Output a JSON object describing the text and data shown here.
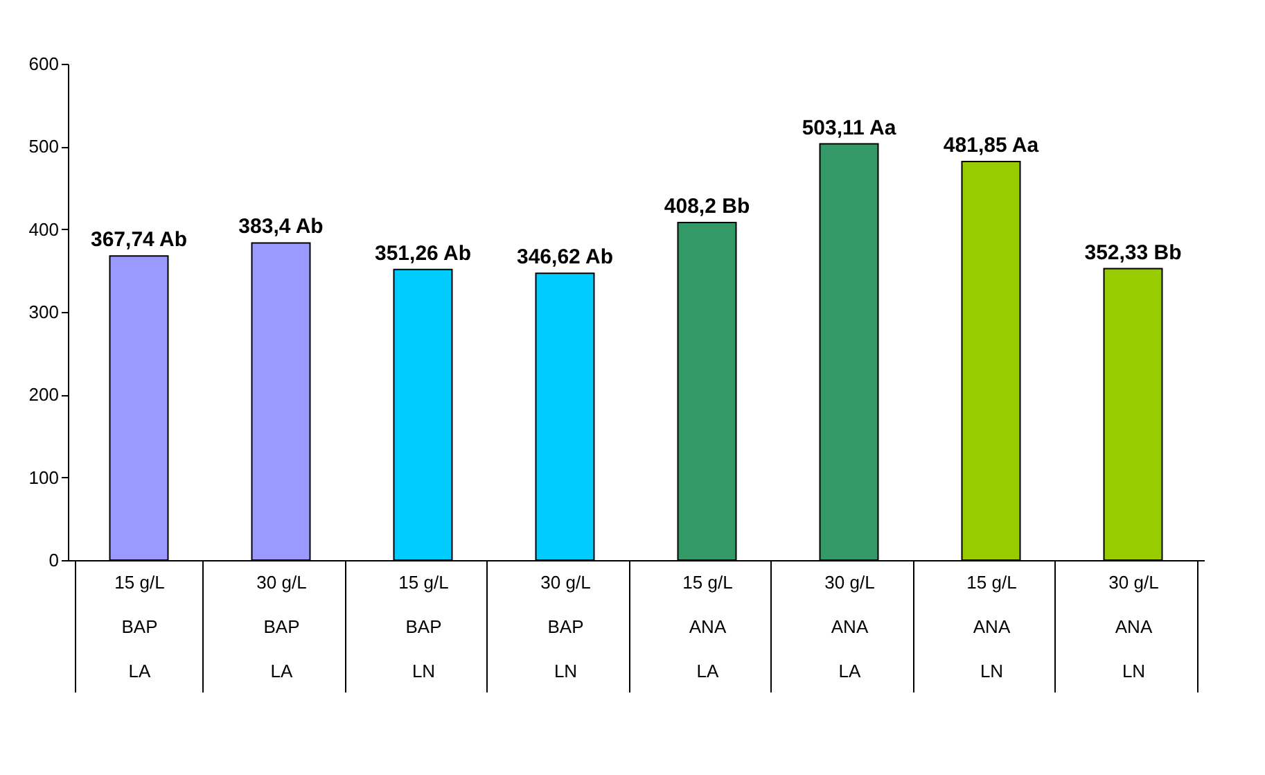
{
  "chart_data": {
    "type": "bar",
    "categories": [
      "15 g/L\nBAP\nLA",
      "30 g/L\nBAP\nLA",
      "15 g/L\nBAP\nLN",
      "30 g/L\nBAP\nLN",
      "15 g/L\nANA\nLA",
      "30 g/L\nANA\nLA",
      "15 g/L\nANA\nLN",
      "30 g/L\nANA\nLN"
    ],
    "values": [
      367.74,
      383.4,
      351.26,
      346.62,
      408.2,
      503.11,
      481.85,
      352.33
    ],
    "colors": [
      "#9999ff",
      "#9999ff",
      "#00ccff",
      "#00ccff",
      "#339966",
      "#339966",
      "#99cc00",
      "#99cc00"
    ],
    "value_labels": [
      "367,74 Ab",
      "383,4 Ab",
      "351,26 Ab",
      "346,62 Ab",
      "408,2 Bb",
      "503,11 Aa",
      "481,85 Aa",
      "352,33 Bb"
    ],
    "ylim": [
      0,
      600
    ],
    "yticks": [
      0,
      100,
      200,
      300,
      400,
      500,
      600
    ],
    "grid": false
  }
}
